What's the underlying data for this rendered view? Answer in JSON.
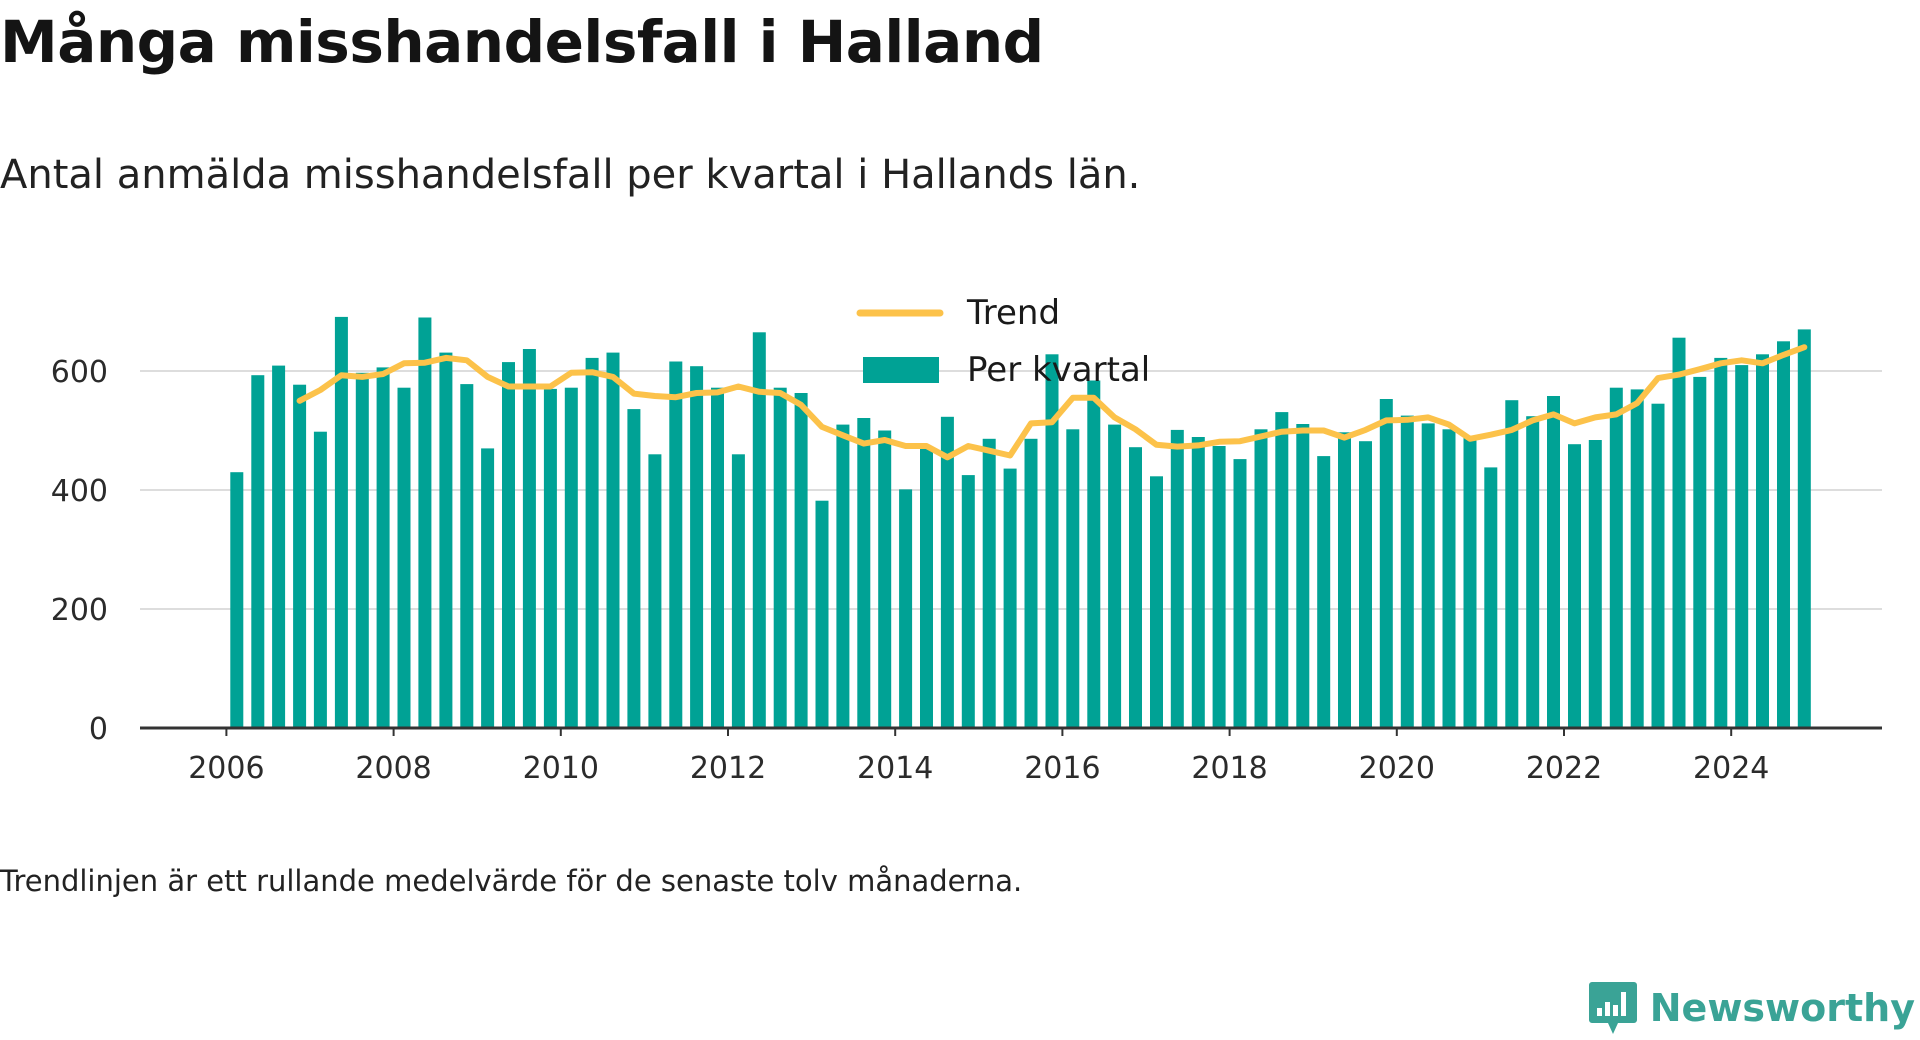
{
  "title": "Många misshandelsfall i Halland",
  "subtitle": "Antal anmälda misshandelsfall per kvartal i Hallands län.",
  "footnote": "Trendlinjen är ett rullande medelvärde för de senaste tolv månaderna.",
  "brand": {
    "name": "Newsworthy"
  },
  "colors": {
    "bars": "#00a295",
    "trend": "#fcc24a",
    "grid": "#dddddd",
    "axis": "#333333",
    "text": "#2b2b2b",
    "brand": "#3aa396"
  },
  "chart_data": {
    "type": "bar",
    "x_axis": {
      "type": "time",
      "ticks": [
        "2006",
        "2008",
        "2010",
        "2012",
        "2014",
        "2016",
        "2018",
        "2020",
        "2022",
        "2024"
      ],
      "range": [
        "2005-Q4",
        "2025-Q4"
      ]
    },
    "y_axis": {
      "ticks": [
        0,
        200,
        400,
        600
      ],
      "range": [
        0,
        700
      ]
    },
    "grid": true,
    "legend": {
      "position": "top-center",
      "entries": [
        "Trend",
        "Per kvartal"
      ]
    },
    "series": [
      {
        "name": "Per kvartal",
        "type": "bar",
        "start": "2006-Q1",
        "values": [
          430,
          593,
          609,
          577,
          498,
          691,
          597,
          606,
          572,
          690,
          631,
          578,
          470,
          615,
          637,
          570,
          572,
          622,
          631,
          536,
          460,
          616,
          608,
          572,
          460,
          665,
          572,
          563,
          382,
          510,
          521,
          500,
          401,
          470,
          523,
          425,
          486,
          436,
          486,
          628,
          502,
          584,
          510,
          472,
          423,
          501,
          489,
          474,
          452,
          502,
          531,
          511,
          457,
          497,
          482,
          553,
          525,
          512,
          502,
          489,
          438,
          551,
          524,
          558,
          477,
          484,
          572,
          569,
          545,
          656,
          590,
          622,
          610,
          628,
          650,
          670
        ]
      },
      {
        "name": "Trend",
        "type": "line",
        "start": "2006-Q4",
        "values": [
          550,
          568,
          593,
          590,
          595,
          613,
          614,
          622,
          618,
          590,
          574,
          574,
          574,
          597,
          598,
          590,
          562,
          558,
          556,
          563,
          564,
          574,
          565,
          563,
          543,
          506,
          492,
          478,
          484,
          474,
          474,
          455,
          474,
          466,
          458,
          512,
          514,
          555,
          555,
          522,
          502,
          476,
          473,
          475,
          481,
          482,
          490,
          498,
          500,
          500,
          488,
          501,
          517,
          518,
          522,
          510,
          486,
          493,
          501,
          517,
          527,
          512,
          522,
          527,
          546,
          588,
          594,
          603,
          613,
          618,
          613,
          627,
          640
        ]
      }
    ]
  }
}
